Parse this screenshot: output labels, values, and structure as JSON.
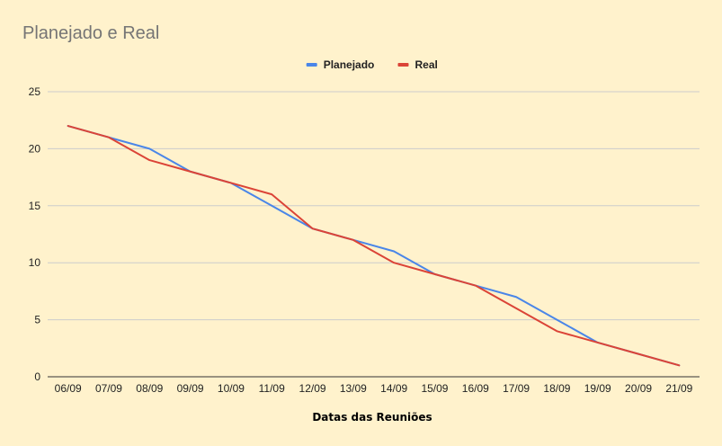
{
  "chart_data": {
    "type": "line",
    "title": "Planejado e Real",
    "xlabel": "Datas das Reuniões",
    "ylabel": "",
    "categories": [
      "06/09",
      "07/09",
      "08/09",
      "09/09",
      "10/09",
      "11/09",
      "12/09",
      "13/09",
      "14/09",
      "15/09",
      "16/09",
      "17/09",
      "18/09",
      "19/09",
      "20/09",
      "21/09"
    ],
    "series": [
      {
        "name": "Planejado",
        "color": "#4a86e8",
        "values": [
          22,
          21,
          20,
          18,
          17,
          15,
          13,
          12,
          11,
          9,
          8,
          7,
          5,
          3,
          2,
          1
        ]
      },
      {
        "name": "Real",
        "color": "#db4437",
        "values": [
          22,
          21,
          19,
          18,
          17,
          16,
          13,
          12,
          10,
          9,
          8,
          6,
          4,
          3,
          2,
          1
        ]
      }
    ],
    "ylim": [
      0,
      25
    ],
    "yticks": [
      0,
      5,
      10,
      15,
      20,
      25
    ],
    "grid": true,
    "legend_position": "top",
    "gridline_color": "#cccccc",
    "background_color": "#fff2cc"
  }
}
